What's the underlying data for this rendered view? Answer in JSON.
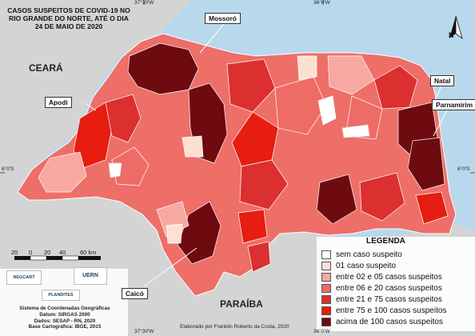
{
  "map": {
    "title": "CASOS SUSPEITOS DE COVID-19 NO RIO GRANDE DO NORTE, ATÉ O DIA 24 DE MAIO DE 2020",
    "north": "N",
    "coordinates": {
      "top_left": "37°30'W",
      "top_right": "36°0'W",
      "bottom_left": "37°30'W",
      "bottom_right": "36°0'W",
      "left_lat": "6°0'S",
      "right_lat": "6°0'S"
    },
    "states": {
      "ceara": "CEARÁ",
      "paraiba": "PARAÍBA"
    },
    "cities": {
      "mossoro": "Mossoró",
      "apodi": "Apodi",
      "natal": "Natal",
      "parnamirim": "Parnamirim",
      "caico": "Caicó"
    },
    "colors": {
      "ocean": "#b8d8ec",
      "neighbor": "#d2d2d2",
      "border": "#ffffff"
    }
  },
  "legend": {
    "title": "LEGENDA",
    "items": [
      {
        "label": "sem caso suspeito",
        "color": "#ffffff"
      },
      {
        "label": "01 caso suspeito",
        "color": "#fde0d2"
      },
      {
        "label": "entre 02 e 05 casos suspeitos",
        "color": "#f7a8a1"
      },
      {
        "label": "entre 06 e 20 casos suspeitos",
        "color": "#ef6b66"
      },
      {
        "label": "entre 21 e 75 casos suspeitos",
        "color": "#dc2f2f"
      },
      {
        "label": "entre 75 e 100 casos suspeitos",
        "color": "#e61d10"
      },
      {
        "label": "acima de 100 casos suspeitos",
        "color": "#6d0b10"
      }
    ]
  },
  "scale": {
    "ticks": [
      "20",
      "0",
      "20",
      "40",
      "60 km"
    ]
  },
  "credits": {
    "lines": [
      "Sistema de Coordenadas Geográficas",
      "Datum: SIRGAS 2000",
      "Dados: SESAP - RN, 2020",
      "Base Cartográfica: IBGE, 2015"
    ],
    "author": "Elaborado por Franklin Roberto da Costa, 2020",
    "logos": [
      "NEGCART",
      "UERN",
      "PLANDITES"
    ]
  }
}
